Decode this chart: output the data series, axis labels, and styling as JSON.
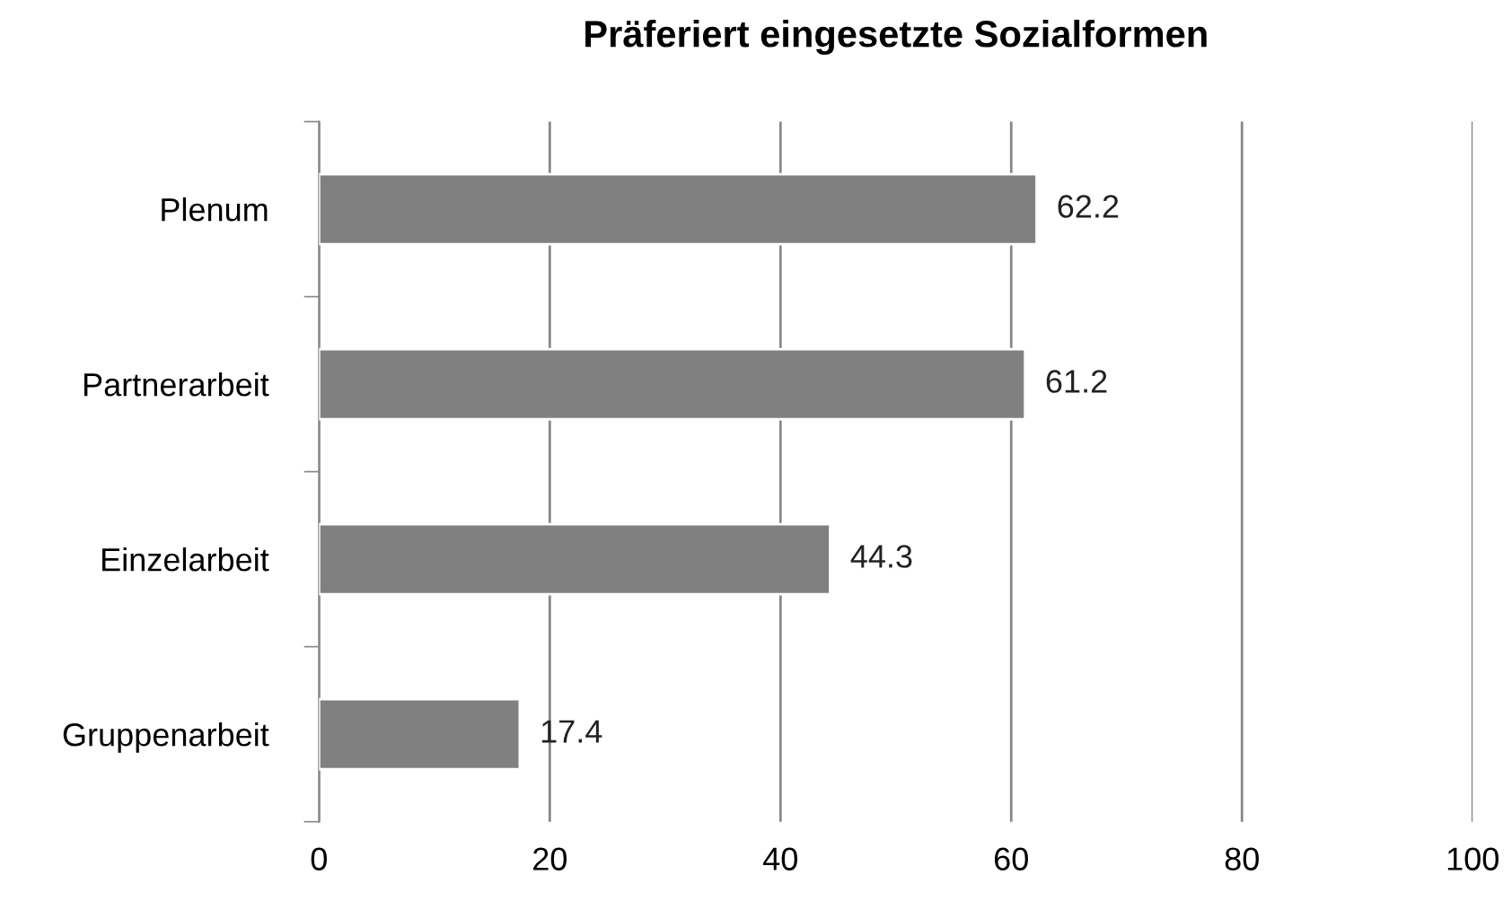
{
  "chart_data": {
    "type": "bar",
    "orientation": "horizontal",
    "title": "Präferiert eingesetzte Sozialformen",
    "categories": [
      "Plenum",
      "Partnerarbeit",
      "Einzelarbeit",
      "Gruppenarbeit"
    ],
    "values": [
      62.2,
      61.2,
      44.3,
      17.4
    ],
    "color": "#808080",
    "xlim": [
      0,
      100
    ],
    "xticks": [
      0,
      20,
      40,
      60,
      80,
      100
    ],
    "grid": "x",
    "data_labels": true,
    "legend": false
  }
}
